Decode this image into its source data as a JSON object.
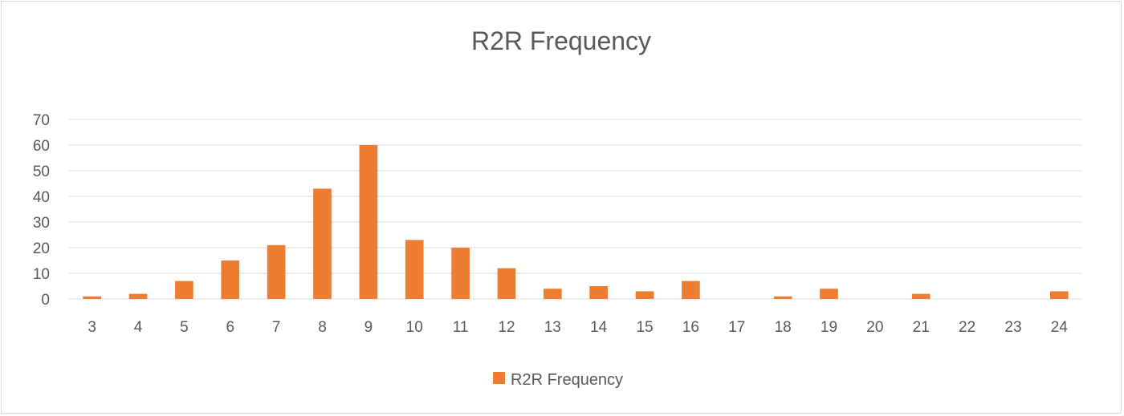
{
  "chart_data": {
    "type": "bar",
    "title": "R2R Frequency",
    "xlabel": "",
    "ylabel": "",
    "categories": [
      "3",
      "4",
      "5",
      "6",
      "7",
      "8",
      "9",
      "10",
      "11",
      "12",
      "13",
      "14",
      "15",
      "16",
      "17",
      "18",
      "19",
      "20",
      "21",
      "22",
      "23",
      "24"
    ],
    "series": [
      {
        "name": "R2R Frequency",
        "values": [
          1,
          2,
          7,
          15,
          21,
          43,
          60,
          23,
          20,
          12,
          4,
          5,
          3,
          7,
          0,
          1,
          4,
          0,
          2,
          0,
          0,
          3
        ]
      }
    ],
    "ylim": [
      0,
      70
    ],
    "yticks": [
      0,
      10,
      20,
      30,
      40,
      50,
      60,
      70
    ],
    "grid": true,
    "legend_position": "bottom",
    "colors": {
      "bar": "#ED7D31",
      "grid": "#d9d9d9",
      "text": "#595959"
    }
  }
}
